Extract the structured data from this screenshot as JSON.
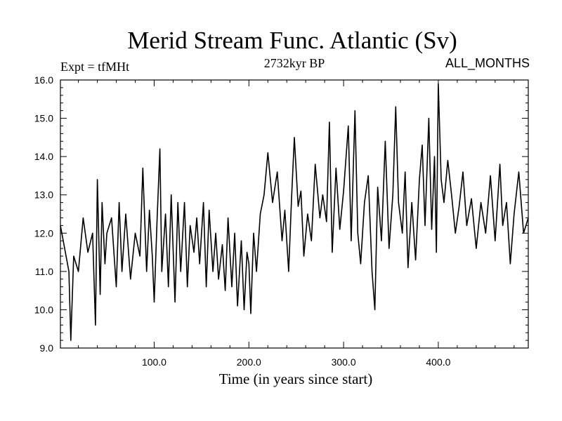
{
  "chart_data": {
    "type": "line",
    "title": "Merid Stream Func. Atlantic (Sv)",
    "subtitle": "2732kyr BP",
    "experiment": "Expt = tfMHt",
    "months": "ALL_MONTHS",
    "xlabel": "Time (in years since start)",
    "ylabel": "",
    "xlim": [
      1,
      495
    ],
    "ylim": [
      9.0,
      16.0
    ],
    "xticks": [
      100,
      200,
      300,
      400
    ],
    "xtick_labels": [
      "100.0",
      "200.0",
      "300.0",
      "400.0"
    ],
    "yticks": [
      9,
      10,
      11,
      12,
      13,
      14,
      15,
      16
    ],
    "ytick_labels": [
      "9.0",
      "10.0",
      "11.0",
      "12.0",
      "13.0",
      "14.0",
      "15.0",
      "16.0"
    ],
    "series": [
      {
        "name": "Merid Stream Func. Atlantic",
        "x": [
          1,
          10,
          12,
          15,
          20,
          25,
          30,
          35,
          38,
          40,
          43,
          45,
          48,
          50,
          55,
          60,
          63,
          66,
          70,
          75,
          80,
          85,
          88,
          92,
          95,
          98,
          100,
          103,
          106,
          108,
          112,
          115,
          118,
          120,
          122,
          125,
          128,
          132,
          135,
          138,
          142,
          145,
          148,
          152,
          155,
          158,
          162,
          165,
          168,
          172,
          175,
          178,
          182,
          185,
          188,
          192,
          195,
          198,
          200,
          202,
          205,
          208,
          212,
          216,
          220,
          225,
          230,
          235,
          238,
          242,
          245,
          248,
          252,
          255,
          258,
          262,
          266,
          270,
          275,
          278,
          282,
          285,
          288,
          292,
          296,
          300,
          305,
          308,
          312,
          315,
          318,
          322,
          326,
          330,
          333,
          336,
          340,
          344,
          348,
          352,
          355,
          358,
          362,
          365,
          368,
          372,
          376,
          380,
          383,
          386,
          390,
          393,
          396,
          398,
          400,
          403,
          406,
          410,
          414,
          418,
          422,
          426,
          430,
          435,
          440,
          445,
          450,
          455,
          460,
          465,
          468,
          472,
          476,
          480,
          485,
          490,
          495
        ],
        "values": [
          12.2,
          11.0,
          9.2,
          11.4,
          11.0,
          12.4,
          11.5,
          12.0,
          9.6,
          13.4,
          10.4,
          12.8,
          11.2,
          12.0,
          12.4,
          10.6,
          12.8,
          11.0,
          12.5,
          10.8,
          12.0,
          11.4,
          13.7,
          11.0,
          12.6,
          11.4,
          10.2,
          12.3,
          14.2,
          11.0,
          12.5,
          10.6,
          13.0,
          11.6,
          10.2,
          12.8,
          11.0,
          12.8,
          10.6,
          12.2,
          11.5,
          12.4,
          11.2,
          12.8,
          10.6,
          12.6,
          11.0,
          12.0,
          10.8,
          11.7,
          10.5,
          12.4,
          10.6,
          12.0,
          10.1,
          11.8,
          10.0,
          11.5,
          11.2,
          9.9,
          12.0,
          11.0,
          12.5,
          13.0,
          14.1,
          12.8,
          13.6,
          11.8,
          12.6,
          11.0,
          12.9,
          14.5,
          12.7,
          13.1,
          11.4,
          12.5,
          11.8,
          13.8,
          12.4,
          13.0,
          12.3,
          14.9,
          11.5,
          13.7,
          12.1,
          13.1,
          14.8,
          11.8,
          15.2,
          12.0,
          11.2,
          12.8,
          13.5,
          11.0,
          10.0,
          13.2,
          11.8,
          14.4,
          11.6,
          13.0,
          15.3,
          12.8,
          12.0,
          13.6,
          11.1,
          12.8,
          11.3,
          13.4,
          14.3,
          12.2,
          15.0,
          12.1,
          14.0,
          11.5,
          15.9,
          13.4,
          12.8,
          13.9,
          13.0,
          12.0,
          12.7,
          13.6,
          12.2,
          12.9,
          11.6,
          12.8,
          12.0,
          13.5,
          11.8,
          13.8,
          12.2,
          12.8,
          11.2,
          12.5,
          13.6,
          12.0,
          12.4
        ]
      }
    ]
  }
}
